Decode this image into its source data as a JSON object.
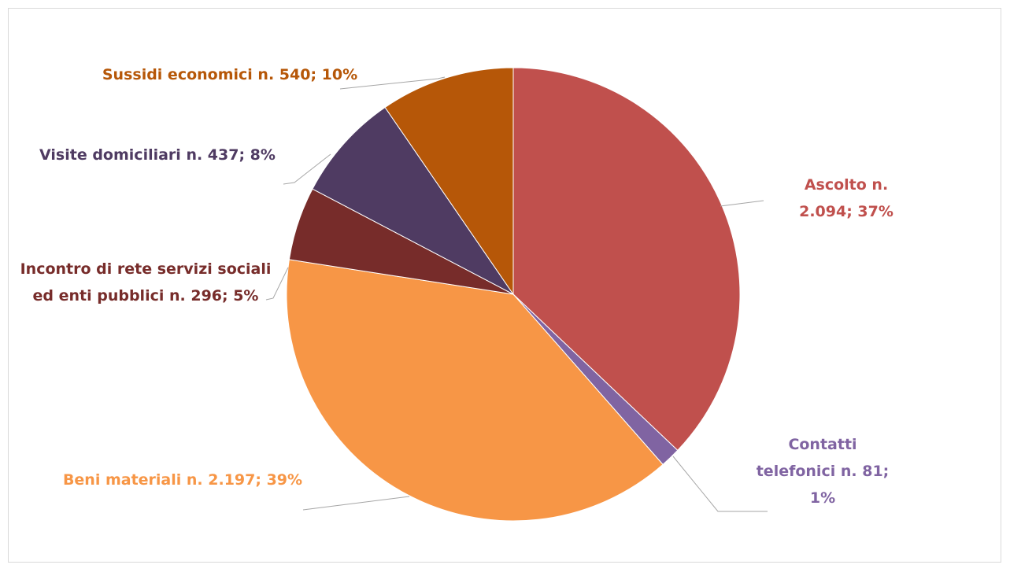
{
  "chart_data": {
    "type": "pie",
    "categories": [
      "Ascolto",
      "Contatti telefonici",
      "Beni materiali",
      "Incontro di rete servizi sociali ed enti pubblici",
      "Visite domiciliari",
      "Sussidi economici"
    ],
    "values": [
      2094,
      81,
      2197,
      296,
      437,
      540
    ],
    "value_labels": [
      "n. 2.094; 37%",
      "n. 81; 1%",
      "n. 2.197; 39%",
      "n. 296; 5%",
      "n. 437; 8%",
      "n. 540; 10%"
    ],
    "colors": [
      "#c0504d",
      "#8064a2",
      "#f79646",
      "#772c2a",
      "#4f3b62",
      "#b65708"
    ]
  }
}
